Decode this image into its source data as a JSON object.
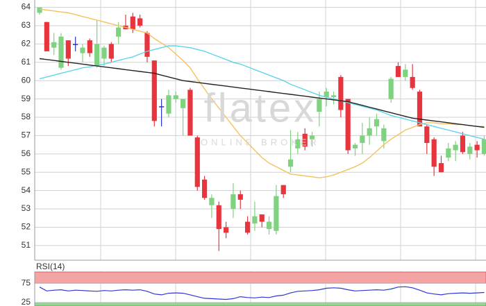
{
  "chart_data": [
    {
      "type": "candlestick",
      "watermark": {
        "logo": "flatex",
        "tagline": "ONLINE BROKER"
      },
      "open": [
        63.7,
        63.2,
        61.8,
        60.7,
        62.2,
        62.0,
        61.5,
        62.2,
        60.8,
        61.2,
        62.0,
        62.4,
        63.0,
        63.5,
        63.4,
        62.6,
        61.1,
        58.6,
        58.2,
        59.0,
        58.5,
        59.5,
        56.9,
        54.6,
        53.2,
        53.2,
        52.0,
        53.0,
        53.8,
        52.3,
        52.2,
        52.7,
        51.9,
        51.8,
        54.3,
        55.3,
        56.3,
        57.1,
        56.8,
        58.3,
        59.1,
        59.1,
        60.2,
        59.0,
        56.3,
        56.6,
        57.0,
        57.5,
        56.7,
        59.0,
        60.8,
        60.2,
        60.2,
        59.4,
        57.5,
        56.8,
        55.5,
        55.8,
        56.2,
        57.0,
        56.0,
        56.5,
        56.0
      ],
      "high": [
        64.0,
        63.2,
        62.6,
        62.6,
        62.2,
        62.4,
        62.0,
        62.3,
        63.3,
        61.9,
        62.1,
        63.2,
        63.6,
        63.7,
        63.6,
        62.7,
        61.1,
        59.0,
        59.5,
        59.4,
        59.0,
        59.6,
        57.0,
        54.8,
        53.8,
        53.4,
        52.3,
        54.4,
        54.0,
        52.6,
        53.4,
        52.7,
        52.6,
        54.3,
        54.3,
        57.3,
        57.2,
        57.4,
        57.2,
        59.4,
        59.6,
        59.4,
        60.3,
        59.0,
        56.6,
        57.7,
        58.0,
        58.2,
        57.6,
        60.2,
        61.0,
        60.9,
        60.9,
        59.5,
        57.6,
        56.9,
        55.9,
        56.6,
        56.7,
        57.2,
        56.6,
        56.7,
        57.0
      ],
      "low": [
        63.6,
        61.6,
        61.4,
        60.6,
        60.8,
        61.6,
        61.0,
        61.3,
        60.7,
        60.8,
        61.0,
        62.0,
        62.8,
        62.6,
        62.9,
        61.0,
        57.5,
        57.5,
        58.0,
        58.8,
        57.0,
        57.0,
        54.0,
        53.5,
        52.5,
        50.7,
        51.4,
        52.5,
        53.0,
        51.6,
        51.8,
        52.0,
        51.6,
        51.6,
        53.6,
        55.0,
        56.0,
        56.2,
        56.4,
        57.5,
        58.6,
        58.7,
        58.0,
        56.0,
        55.9,
        56.0,
        56.5,
        57.0,
        56.3,
        58.8,
        60.2,
        60.0,
        59.5,
        57.5,
        56.0,
        54.8,
        55.0,
        55.6,
        55.6,
        56.0,
        55.7,
        55.8,
        55.9
      ],
      "close": [
        64.0,
        61.6,
        62.1,
        62.4,
        61.2,
        62.0,
        61.8,
        61.5,
        62.0,
        61.8,
        61.2,
        62.9,
        62.8,
        62.8,
        63.0,
        61.3,
        57.8,
        58.6,
        59.2,
        59.2,
        59.0,
        57.0,
        54.2,
        53.6,
        53.6,
        51.9,
        51.7,
        53.8,
        53.5,
        51.7,
        52.6,
        52.3,
        52.3,
        53.7,
        53.8,
        55.7,
        56.8,
        56.4,
        57.0,
        59.0,
        59.4,
        59.2,
        58.4,
        56.2,
        56.5,
        57.0,
        57.4,
        57.9,
        57.4,
        60.1,
        60.2,
        60.6,
        59.6,
        57.5,
        56.6,
        55.3,
        55.0,
        56.3,
        56.5,
        56.1,
        56.4,
        56.2,
        56.8
      ],
      "colors": {
        "up": "#7fd27f",
        "down": "#e8343d",
        "flat": "#2a36c8"
      },
      "overlays": [
        {
          "color": "#f5c060",
          "values": [
            63.9,
            63.85,
            63.8,
            63.75,
            63.7,
            63.6,
            63.5,
            63.4,
            63.3,
            63.2,
            63.1,
            63.0,
            62.9,
            62.8,
            62.7,
            62.6,
            62.3,
            62.05,
            61.8,
            61.45,
            61.1,
            60.7,
            60.1,
            59.55,
            59.0,
            58.5,
            58.0,
            57.5,
            57.0,
            56.6,
            56.2,
            55.8,
            55.5,
            55.3,
            55.1,
            54.9,
            54.85,
            54.8,
            54.75,
            54.7,
            54.75,
            54.85,
            55.0,
            55.15,
            55.3,
            55.5,
            55.8,
            56.15,
            56.5,
            56.8,
            57.05,
            57.3,
            57.45,
            57.6,
            57.7,
            57.7,
            57.65,
            57.65,
            57.6,
            57.6,
            57.55,
            57.5,
            57.5
          ]
        },
        {
          "color": "#5fd3ea",
          "values": [
            60.1,
            60.2,
            60.3,
            60.4,
            60.5,
            60.6,
            60.7,
            60.75,
            60.85,
            60.9,
            61.0,
            61.1,
            61.2,
            61.3,
            61.45,
            61.6,
            61.7,
            61.8,
            61.9,
            61.9,
            61.85,
            61.8,
            61.7,
            61.6,
            61.45,
            61.3,
            61.15,
            61.0,
            60.9,
            60.75,
            60.6,
            60.45,
            60.3,
            60.15,
            60.0,
            59.8,
            59.65,
            59.5,
            59.35,
            59.2,
            59.1,
            59.0,
            58.9,
            58.8,
            58.7,
            58.6,
            58.5,
            58.4,
            58.25,
            58.1,
            58.0,
            57.9,
            57.8,
            57.7,
            57.6,
            57.5,
            57.4,
            57.3,
            57.2,
            57.1,
            57.0,
            56.9,
            56.8
          ]
        },
        {
          "color": "#222222",
          "values": [
            61.2,
            61.15,
            61.1,
            61.05,
            61.0,
            60.95,
            60.9,
            60.85,
            60.8,
            60.75,
            60.7,
            60.65,
            60.6,
            60.55,
            60.5,
            60.45,
            60.4,
            60.3,
            60.2,
            60.1,
            60.0,
            59.95,
            59.9,
            59.85,
            59.8,
            59.75,
            59.7,
            59.65,
            59.6,
            59.55,
            59.5,
            59.45,
            59.4,
            59.35,
            59.3,
            59.25,
            59.2,
            59.15,
            59.1,
            59.05,
            59.0,
            58.95,
            58.9,
            58.85,
            58.75,
            58.65,
            58.55,
            58.45,
            58.35,
            58.25,
            58.15,
            58.05,
            57.95,
            57.9,
            57.85,
            57.8,
            57.75,
            57.7,
            57.65,
            57.6,
            57.55,
            57.5,
            57.45
          ]
        }
      ],
      "ylim": [
        50.2,
        64.4
      ],
      "yticks": [
        51,
        52,
        53,
        54,
        55,
        56,
        57,
        58,
        59,
        60,
        61,
        62,
        63,
        64
      ],
      "grid": true
    },
    {
      "type": "line",
      "title": "RSI(14)",
      "values": [
        65,
        55,
        57,
        58,
        55,
        57,
        56,
        55,
        54,
        56,
        55,
        57,
        58,
        57,
        58,
        54,
        47,
        45,
        49,
        50,
        49,
        45,
        40,
        36,
        35,
        34,
        33,
        35,
        40,
        38,
        37,
        39,
        38,
        42,
        44,
        50,
        54,
        55,
        56,
        58,
        62,
        63,
        62,
        58,
        55,
        56,
        57,
        58,
        57,
        60,
        65,
        66,
        63,
        57,
        50,
        47,
        45,
        48,
        49,
        50,
        49,
        50,
        51
      ],
      "color": "#2a36d8",
      "upper_band_color": "#f4a4a4",
      "lower_band_color": "#8fd88f",
      "ylim": [
        16,
        104
      ],
      "yticks": [
        25,
        75
      ],
      "grid": true
    }
  ]
}
